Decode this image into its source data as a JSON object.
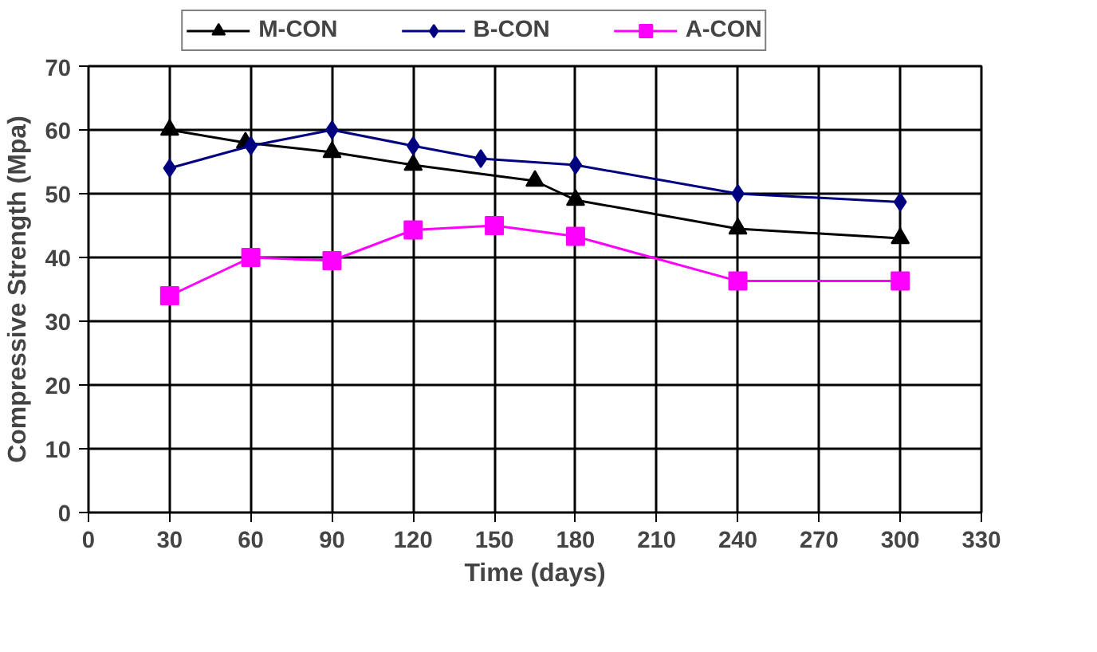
{
  "chart_data": {
    "type": "line",
    "xlabel": "Time (days)",
    "ylabel": "Compressive Strength (Mpa)",
    "xlim": [
      0,
      330
    ],
    "xticks": [
      0,
      30,
      60,
      90,
      120,
      150,
      180,
      210,
      240,
      270,
      300,
      330
    ],
    "ylim": [
      0,
      70
    ],
    "yticks": [
      0,
      10,
      20,
      30,
      40,
      50,
      60,
      70
    ],
    "grid": true,
    "legend": "top",
    "series": [
      {
        "name": "M-CON",
        "color": "#000000",
        "marker": "triangle",
        "x": [
          30,
          58,
          90,
          120,
          165,
          180,
          240,
          300
        ],
        "values": [
          60,
          58,
          56.5,
          54.5,
          52,
          49,
          44.5,
          43
        ]
      },
      {
        "name": "B-CON",
        "color": "#000080",
        "marker": "diamond",
        "x": [
          30,
          60,
          90,
          120,
          145,
          180,
          240,
          300
        ],
        "values": [
          54,
          57.5,
          60,
          57.5,
          55.5,
          54.5,
          50,
          48.7
        ]
      },
      {
        "name": "A-CON",
        "color": "#ff00ff",
        "marker": "square",
        "x": [
          30,
          60,
          90,
          120,
          150,
          180,
          240,
          300
        ],
        "values": [
          34,
          40,
          39.5,
          44.3,
          45,
          43.3,
          36.3,
          36.3
        ]
      }
    ]
  }
}
